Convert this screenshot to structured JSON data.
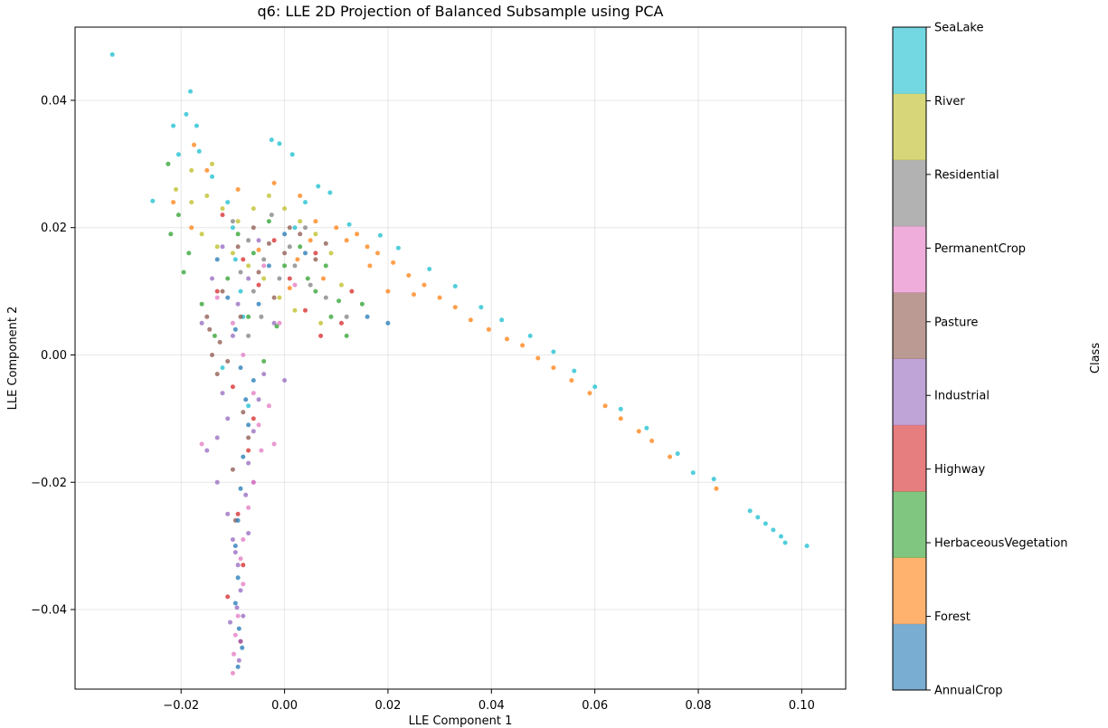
{
  "chart_data": {
    "type": "scatter",
    "title": "q6: LLE 2D Projection of Balanced Subsample using PCA",
    "xlabel": "LLE Component 1",
    "ylabel": "LLE Component 2",
    "xlim": [
      -0.0405,
      0.1085
    ],
    "ylim": [
      -0.0525,
      0.0515
    ],
    "x_ticks": [
      -0.02,
      0.0,
      0.02,
      0.04,
      0.06,
      0.08,
      0.1
    ],
    "x_tick_labels": [
      "−0.02",
      "0.00",
      "0.02",
      "0.04",
      "0.06",
      "0.08",
      "0.10"
    ],
    "y_ticks": [
      -0.04,
      -0.02,
      0.0,
      0.02,
      0.04
    ],
    "y_tick_labels": [
      "−0.04",
      "−0.02",
      "0.00",
      "0.02",
      "0.04"
    ],
    "grid": true,
    "point_alpha": 0.75,
    "colorbar": {
      "label": "Class",
      "classes": [
        "AnnualCrop",
        "Forest",
        "HerbaceousVegetation",
        "Highway",
        "Industrial",
        "Pasture",
        "PermanentCrop",
        "Residential",
        "River",
        "SeaLake"
      ],
      "colors": [
        "#1f77b4",
        "#ff7f0e",
        "#2ca02c",
        "#d62728",
        "#9467bd",
        "#8c564b",
        "#e377c2",
        "#7f7f7f",
        "#bcbd22",
        "#17becf"
      ],
      "alpha": 0.6
    },
    "series": [
      {
        "class": "SeaLake",
        "points": [
          [
            -0.0333,
            0.0472
          ],
          [
            -0.0025,
            0.0338
          ],
          [
            -0.001,
            0.0332
          ],
          [
            0.0015,
            0.0315
          ],
          [
            0.0065,
            0.0265
          ],
          [
            0.0088,
            0.0255
          ],
          [
            0.0125,
            0.0205
          ],
          [
            0.0185,
            0.0188
          ],
          [
            0.022,
            0.0168
          ],
          [
            0.028,
            0.0135
          ],
          [
            0.033,
            0.0108
          ],
          [
            0.038,
            0.0075
          ],
          [
            0.042,
            0.0055
          ],
          [
            0.0475,
            0.003
          ],
          [
            0.052,
            0.0005
          ],
          [
            0.056,
            -0.0025
          ],
          [
            0.06,
            -0.005
          ],
          [
            0.065,
            -0.0085
          ],
          [
            0.07,
            -0.0115
          ],
          [
            0.076,
            -0.0155
          ],
          [
            0.079,
            -0.0185
          ],
          [
            0.083,
            -0.0195
          ],
          [
            0.09,
            -0.0245
          ],
          [
            0.0915,
            -0.0255
          ],
          [
            0.093,
            -0.0265
          ],
          [
            0.0945,
            -0.0275
          ],
          [
            0.096,
            -0.0285
          ],
          [
            0.0968,
            -0.0295
          ],
          [
            0.101,
            -0.03
          ],
          [
            -0.0255,
            0.0242
          ],
          [
            -0.0205,
            0.0315
          ],
          [
            -0.0165,
            0.032
          ],
          [
            -0.014,
            0.028
          ],
          [
            -0.011,
            0.024
          ],
          [
            -0.01,
            0.02
          ],
          [
            -0.0085,
            0.01
          ],
          [
            -0.008,
            0.006
          ],
          [
            -0.012,
            -0.002
          ],
          [
            -0.007,
            -0.008
          ],
          [
            -0.0095,
            0.015
          ],
          [
            0.002,
            0.02
          ],
          [
            0.004,
            0.024
          ],
          [
            -0.0215,
            0.036
          ],
          [
            -0.019,
            0.0378
          ],
          [
            -0.0182,
            0.0414
          ],
          [
            -0.017,
            0.036
          ]
        ]
      },
      {
        "class": "Forest",
        "points": [
          [
            0.014,
            0.019
          ],
          [
            0.016,
            0.017
          ],
          [
            0.018,
            0.016
          ],
          [
            0.021,
            0.0145
          ],
          [
            0.024,
            0.0125
          ],
          [
            0.027,
            0.011
          ],
          [
            0.03,
            0.009
          ],
          [
            0.033,
            0.0075
          ],
          [
            0.036,
            0.0055
          ],
          [
            0.0395,
            0.004
          ],
          [
            0.043,
            0.0025
          ],
          [
            0.046,
            0.0015
          ],
          [
            0.049,
            -0.0005
          ],
          [
            0.052,
            -0.002
          ],
          [
            0.0555,
            -0.004
          ],
          [
            0.059,
            -0.006
          ],
          [
            0.062,
            -0.008
          ],
          [
            0.065,
            -0.01
          ],
          [
            0.0685,
            -0.012
          ],
          [
            0.071,
            -0.0135
          ],
          [
            0.0745,
            -0.016
          ],
          [
            0.0835,
            -0.021
          ],
          [
            0.01,
            0.02
          ],
          [
            0.012,
            0.018
          ],
          [
            0.006,
            0.021
          ],
          [
            0.003,
            0.025
          ],
          [
            -0.002,
            0.027
          ],
          [
            -0.009,
            0.026
          ],
          [
            -0.015,
            0.029
          ],
          [
            -0.0175,
            0.033
          ],
          [
            -0.0215,
            0.024
          ],
          [
            -0.018,
            0.02
          ],
          [
            0.0025,
            0.015
          ],
          [
            0.0075,
            0.012
          ],
          [
            0.005,
            0.018
          ],
          [
            -0.005,
            0.0165
          ],
          [
            0.001,
            0.0105
          ],
          [
            0.025,
            0.0095
          ],
          [
            0.0165,
            0.014
          ],
          [
            0.02,
            0.01
          ]
        ]
      },
      {
        "class": "HerbaceousVegetation",
        "points": [
          [
            -0.0225,
            0.03
          ],
          [
            -0.0205,
            0.022
          ],
          [
            -0.0185,
            0.016
          ],
          [
            -0.016,
            0.008
          ],
          [
            -0.0135,
            0.003
          ],
          [
            -0.011,
            0.012
          ],
          [
            -0.009,
            0.019
          ],
          [
            -0.006,
            0.016
          ],
          [
            -0.003,
            0.021
          ],
          [
            0.0,
            0.014
          ],
          [
            0.003,
            0.017
          ],
          [
            0.006,
            0.01
          ],
          [
            0.009,
            0.006
          ],
          [
            0.012,
            0.003
          ],
          [
            0.015,
            0.008
          ],
          [
            -0.007,
            0.006
          ],
          [
            -0.004,
            -0.001
          ],
          [
            0.0045,
            0.012
          ],
          [
            -0.022,
            0.019
          ],
          [
            -0.0195,
            0.013
          ],
          [
            0.008,
            0.014
          ],
          [
            -0.0015,
            0.0045
          ],
          [
            0.0105,
            0.0085
          ]
        ]
      },
      {
        "class": "Highway",
        "points": [
          [
            -0.012,
            0.022
          ],
          [
            -0.008,
            0.015
          ],
          [
            -0.005,
            0.011
          ],
          [
            -0.002,
            0.018
          ],
          [
            0.001,
            0.012
          ],
          [
            0.004,
            0.007
          ],
          [
            0.007,
            0.003
          ],
          [
            0.011,
            0.005
          ],
          [
            -0.01,
            -0.005
          ],
          [
            -0.007,
            -0.015
          ],
          [
            -0.009,
            -0.025
          ],
          [
            -0.008,
            -0.033
          ],
          [
            -0.011,
            -0.038
          ],
          [
            -0.0085,
            -0.045
          ],
          [
            -0.006,
            -0.01
          ],
          [
            -0.013,
            0.01
          ],
          [
            0.006,
            0.016
          ],
          [
            0.013,
            0.01
          ]
        ]
      },
      {
        "class": "Industrial",
        "points": [
          [
            -0.015,
            -0.015
          ],
          [
            -0.013,
            -0.02
          ],
          [
            -0.011,
            -0.025
          ],
          [
            -0.01,
            -0.029
          ],
          [
            -0.009,
            -0.033
          ],
          [
            -0.0085,
            -0.037
          ],
          [
            -0.008,
            -0.041
          ],
          [
            -0.0085,
            -0.045
          ],
          [
            -0.0088,
            -0.048
          ],
          [
            -0.007,
            -0.017
          ],
          [
            -0.006,
            -0.012
          ],
          [
            -0.005,
            -0.007
          ],
          [
            -0.004,
            -0.003
          ],
          [
            -0.011,
            -0.01
          ],
          [
            -0.012,
            -0.006
          ],
          [
            -0.01,
            0.003
          ],
          [
            -0.009,
            0.008
          ],
          [
            -0.007,
            0.012
          ],
          [
            -0.005,
            0.018
          ],
          [
            -0.012,
            0.017
          ],
          [
            -0.014,
            0.012
          ],
          [
            -0.016,
            0.005
          ],
          [
            -0.0075,
            -0.022
          ],
          [
            -0.0095,
            -0.031
          ],
          [
            -0.007,
            -0.028
          ],
          [
            -0.006,
            -0.02
          ],
          [
            -0.013,
            -0.013
          ],
          [
            -0.0105,
            -0.042
          ],
          [
            -0.0092,
            -0.0397
          ],
          [
            0.0,
            -0.004
          ],
          [
            -0.002,
            0.005
          ]
        ]
      },
      {
        "class": "Pasture",
        "points": [
          [
            -0.0145,
            0.004
          ],
          [
            -0.014,
            0.0
          ],
          [
            -0.013,
            -0.003
          ],
          [
            -0.0125,
            0.002
          ],
          [
            -0.015,
            0.006
          ],
          [
            -0.012,
            0.01
          ],
          [
            -0.009,
            0.017
          ],
          [
            -0.006,
            0.02
          ],
          [
            -0.003,
            0.0175
          ],
          [
            0.0,
            0.016
          ],
          [
            0.003,
            0.019
          ],
          [
            0.006,
            0.015
          ],
          [
            -0.005,
            0.013
          ],
          [
            -0.002,
            0.009
          ],
          [
            -0.0085,
            0.006
          ],
          [
            -0.011,
            -0.001
          ],
          [
            -0.008,
            -0.009
          ],
          [
            -0.007,
            -0.013
          ],
          [
            -0.01,
            -0.018
          ],
          [
            -0.0095,
            -0.026
          ],
          [
            0.001,
            0.02
          ],
          [
            0.008,
            0.0175
          ]
        ]
      },
      {
        "class": "PermanentCrop",
        "points": [
          [
            -0.013,
            0.009
          ],
          [
            -0.01,
            0.005
          ],
          [
            -0.008,
            0.0
          ],
          [
            -0.006,
            -0.006
          ],
          [
            -0.005,
            -0.011
          ],
          [
            -0.0045,
            -0.015
          ],
          [
            -0.006,
            -0.02
          ],
          [
            -0.007,
            -0.024
          ],
          [
            -0.008,
            -0.029
          ],
          [
            -0.0085,
            -0.032
          ],
          [
            -0.008,
            -0.036
          ],
          [
            -0.009,
            -0.041
          ],
          [
            -0.0095,
            -0.044
          ],
          [
            -0.0098,
            -0.047
          ],
          [
            -0.01,
            -0.05
          ],
          [
            -0.003,
            -0.008
          ],
          [
            -0.002,
            -0.014
          ],
          [
            -0.001,
            0.005
          ],
          [
            0.002,
            0.011
          ],
          [
            -0.004,
            0.014
          ],
          [
            -0.016,
            -0.014
          ]
        ]
      },
      {
        "class": "Residential",
        "points": [
          [
            -0.01,
            0.021
          ],
          [
            -0.007,
            0.018
          ],
          [
            -0.004,
            0.015
          ],
          [
            -0.001,
            0.012
          ],
          [
            0.002,
            0.014
          ],
          [
            0.005,
            0.011
          ],
          [
            0.008,
            0.009
          ],
          [
            -0.006,
            0.01
          ],
          [
            -0.0085,
            0.013
          ],
          [
            -0.0045,
            0.006
          ],
          [
            -0.007,
            0.003
          ],
          [
            0.001,
            0.017
          ],
          [
            0.004,
            0.02
          ],
          [
            -0.0025,
            0.022
          ],
          [
            0.012,
            0.006
          ]
        ]
      },
      {
        "class": "River",
        "points": [
          [
            -0.021,
            0.026
          ],
          [
            -0.018,
            0.024
          ],
          [
            -0.015,
            0.025
          ],
          [
            -0.012,
            0.023
          ],
          [
            -0.009,
            0.021
          ],
          [
            -0.006,
            0.023
          ],
          [
            -0.003,
            0.025
          ],
          [
            0.0,
            0.023
          ],
          [
            0.003,
            0.021
          ],
          [
            0.006,
            0.019
          ],
          [
            0.009,
            0.016
          ],
          [
            -0.016,
            0.019
          ],
          [
            -0.013,
            0.017
          ],
          [
            -0.01,
            0.016
          ],
          [
            -0.007,
            0.014
          ],
          [
            -0.004,
            0.012
          ],
          [
            -0.001,
            0.009
          ],
          [
            0.002,
            0.007
          ],
          [
            -0.018,
            0.029
          ],
          [
            -0.014,
            0.03
          ],
          [
            0.007,
            0.005
          ],
          [
            0.011,
            0.011
          ]
        ]
      },
      {
        "class": "AnnualCrop",
        "points": [
          [
            -0.013,
            0.015
          ],
          [
            -0.011,
            0.009
          ],
          [
            -0.0095,
            0.004
          ],
          [
            -0.0085,
            -0.002
          ],
          [
            -0.0075,
            -0.007
          ],
          [
            -0.007,
            -0.011
          ],
          [
            -0.008,
            -0.016
          ],
          [
            -0.0085,
            -0.021
          ],
          [
            -0.009,
            -0.026
          ],
          [
            -0.0095,
            -0.03
          ],
          [
            -0.009,
            -0.035
          ],
          [
            -0.0095,
            -0.039
          ],
          [
            -0.0088,
            -0.043
          ],
          [
            -0.0082,
            -0.046
          ],
          [
            -0.009,
            -0.049
          ],
          [
            -0.005,
            0.008
          ],
          [
            -0.003,
            0.014
          ],
          [
            0.0,
            0.019
          ],
          [
            0.004,
            0.016
          ],
          [
            0.016,
            0.006
          ],
          [
            0.02,
            0.005
          ],
          [
            -0.006,
            -0.004
          ]
        ]
      }
    ]
  }
}
